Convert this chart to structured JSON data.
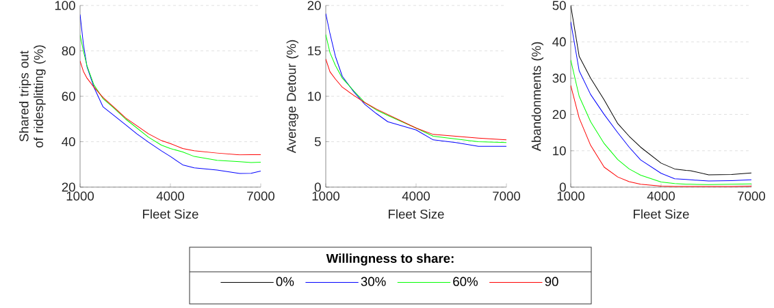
{
  "chart_data": [
    {
      "type": "line",
      "ylabel": "Shared trips out of ridesplitting (%)",
      "xlabel": "Fleet Size",
      "xlim": [
        1000,
        7000
      ],
      "xticks": [
        1000,
        4000,
        7000
      ],
      "ylim": [
        20,
        100
      ],
      "yticks": [
        20,
        40,
        60,
        80,
        100
      ],
      "grid": "y",
      "x": [
        1000,
        1110,
        1230,
        1460,
        1760,
        2140,
        2510,
        2890,
        3270,
        3700,
        4000,
        4410,
        4790,
        5550,
        6300,
        6680,
        7000
      ],
      "series": [
        {
          "color": "#0000ff",
          "values": [
            96,
            83,
            73,
            64,
            55.4,
            51.4,
            47.5,
            43.4,
            39.8,
            36,
            33.5,
            29.8,
            28.5,
            27.5,
            26,
            26.1,
            27.1
          ]
        },
        {
          "color": "#00ff00",
          "values": [
            87,
            80,
            73.4,
            65,
            59,
            54.6,
            50,
            46,
            42,
            38.5,
            37,
            35.5,
            33.5,
            31.8,
            31.2,
            30.8,
            31
          ]
        },
        {
          "color": "#ff0000",
          "values": [
            75.5,
            71,
            68,
            64,
            59.5,
            55,
            50.5,
            47,
            43.5,
            40.5,
            39.2,
            37,
            36,
            35,
            34.2,
            34.3,
            34.3
          ]
        }
      ]
    },
    {
      "type": "line",
      "ylabel": "Average Detour (%)",
      "xlabel": "Fleet Size",
      "xlim": [
        1000,
        7000
      ],
      "xticks": [
        1000,
        4000,
        7000
      ],
      "ylim": [
        0,
        20
      ],
      "yticks": [
        0,
        5,
        10,
        15,
        20
      ],
      "grid": "y",
      "x": [
        1000,
        1140,
        1320,
        1550,
        1930,
        2300,
        2680,
        3060,
        4000,
        4570,
        5320,
        6070,
        7000
      ],
      "series": [
        {
          "color": "#0000ff",
          "values": [
            19.1,
            16.9,
            14.4,
            12.2,
            10.5,
            9.1,
            8.1,
            7.2,
            6.3,
            5.2,
            4.9,
            4.5,
            4.5
          ]
        },
        {
          "color": "#00ff00",
          "values": [
            16.8,
            14.8,
            13.4,
            12.0,
            10.6,
            9.3,
            8.5,
            7.9,
            6.5,
            5.6,
            5.3,
            5.0,
            4.9
          ]
        },
        {
          "color": "#ff0000",
          "values": [
            14.1,
            12.7,
            11.9,
            11.0,
            10.1,
            9.3,
            8.6,
            8.0,
            6.5,
            5.8,
            5.6,
            5.4,
            5.2
          ]
        }
      ]
    },
    {
      "type": "line",
      "ylabel": "Abandonments (%)",
      "xlabel": "Fleet Size",
      "xlim": [
        1000,
        7000
      ],
      "xticks": [
        1000,
        4000,
        7000
      ],
      "ylim": [
        0,
        50
      ],
      "yticks": [
        0,
        10,
        20,
        30,
        40,
        50
      ],
      "grid": "y",
      "legend": "bottom",
      "legend_title": "Willingness to share:",
      "x": [
        1000,
        1280,
        1660,
        2110,
        2560,
        2940,
        3320,
        4000,
        4450,
        4830,
        4980,
        5580,
        6340,
        7000
      ],
      "series": [
        {
          "name": "0%",
          "color": "#000000",
          "values": [
            50,
            36,
            30,
            24,
            17.5,
            14,
            11,
            6.6,
            5,
            4.6,
            4.5,
            3.4,
            3.5,
            3.9
          ]
        },
        {
          "name": "30%",
          "color": "#0000ff",
          "values": [
            45.5,
            32,
            25.5,
            20,
            15,
            11,
            7.5,
            3.8,
            2.3,
            2.1,
            2.0,
            1.7,
            1.8,
            2.0
          ]
        },
        {
          "name": "60%",
          "color": "#00ff00",
          "values": [
            35,
            25,
            18,
            12,
            7.6,
            5,
            3.3,
            1.4,
            1.0,
            0.8,
            0.8,
            0.7,
            0.8,
            0.9
          ]
        },
        {
          "name": "90",
          "color": "#ff0000",
          "values": [
            28,
            19,
            11.5,
            5.5,
            2.8,
            1.5,
            0.8,
            0.3,
            0.2,
            0.2,
            0.2,
            0.2,
            0.2,
            0.3
          ]
        }
      ]
    }
  ]
}
